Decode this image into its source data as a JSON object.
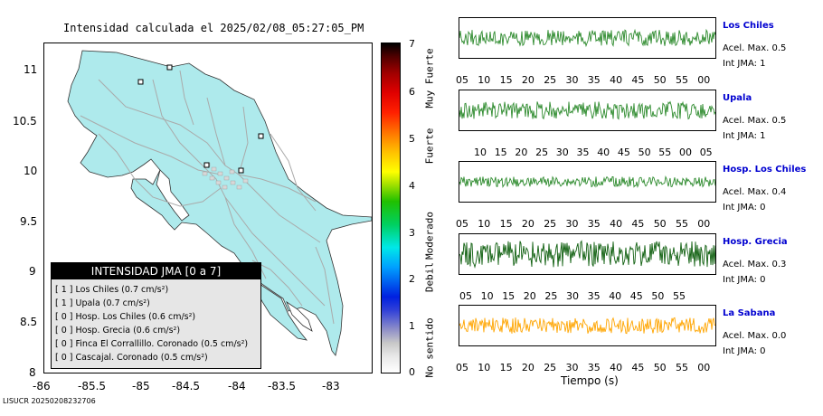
{
  "map": {
    "title": "Intensidad calculada el 2025/02/08_05:27:05_PM",
    "x_ticks": [
      "-86",
      "-85.5",
      "-85",
      "-84.5",
      "-84",
      "-83.5",
      "-83"
    ],
    "y_ticks": [
      "11",
      "10.5",
      "10",
      "9.5",
      "9",
      "8.5",
      "8"
    ],
    "land_color": "#aeeaec",
    "road_color": "#b0b0b0",
    "legend": {
      "header": "INTENSIDAD JMA [0 a 7]",
      "rows": [
        "[ 1 ]  Los Chiles (0.7 cm/s²)",
        "[ 1 ]  Upala (0.7 cm/s²)",
        "[ 0 ]  Hosp. Los Chiles (0.6 cm/s²)",
        "[ 0 ]  Hosp. Grecia (0.6 cm/s²)",
        "[ 0 ]  Finca El Corrallillo. Coronado (0.5 cm/s²)",
        "[ 0 ]  Cascajal. Coronado (0.5 cm/s²)"
      ]
    }
  },
  "colorbar": {
    "numbers": [
      "7",
      "6",
      "5",
      "4",
      "3",
      "2",
      "1",
      "0"
    ],
    "labels": [
      "Muy Fuerte",
      "Fuerte",
      "Moderado",
      "Debil",
      "No sentido"
    ]
  },
  "traces": [
    {
      "station": "Los Chiles",
      "accel": "Acel. Max. 0.5",
      "jma": "Int JMA: 1",
      "color": "#2e8b2e",
      "ticks": [
        "05",
        "10",
        "15",
        "20",
        "25",
        "30",
        "35",
        "40",
        "45",
        "50",
        "55",
        "00"
      ],
      "amp": 0.55
    },
    {
      "station": "Upala",
      "accel": "Acel. Max. 0.5",
      "jma": "Int JMA: 1",
      "color": "#2e8b2e",
      "ticks": [
        "10",
        "15",
        "20",
        "25",
        "30",
        "35",
        "40",
        "45",
        "50",
        "55",
        "00",
        "05"
      ],
      "amp": 0.6
    },
    {
      "station": "Hosp. Los Chiles",
      "accel": "Acel. Max. 0.4",
      "jma": "Int JMA: 0",
      "color": "#2e8b2e",
      "ticks": [
        "05",
        "10",
        "15",
        "20",
        "25",
        "30",
        "35",
        "40",
        "45",
        "50",
        "55",
        "00"
      ],
      "amp": 0.35
    },
    {
      "station": "Hosp. Grecia",
      "accel": "Acel. Max. 0.3",
      "jma": "Int JMA: 0",
      "color": "#106010",
      "ticks": [
        "05",
        "10",
        "15",
        "20",
        "25",
        "30",
        "35",
        "40",
        "45",
        "50",
        "55"
      ],
      "amp": 0.9
    },
    {
      "station": "La Sabana",
      "accel": "Acel. Max. 0.0",
      "jma": "Int JMA: 0",
      "color": "#ffa500",
      "ticks": [
        "05",
        "10",
        "15",
        "20",
        "25",
        "30",
        "35",
        "40",
        "45",
        "50",
        "55",
        "00"
      ],
      "amp": 0.55
    }
  ],
  "x_axis_label": "Tiempo (s)",
  "footer": "LISUCR 20250208232706"
}
